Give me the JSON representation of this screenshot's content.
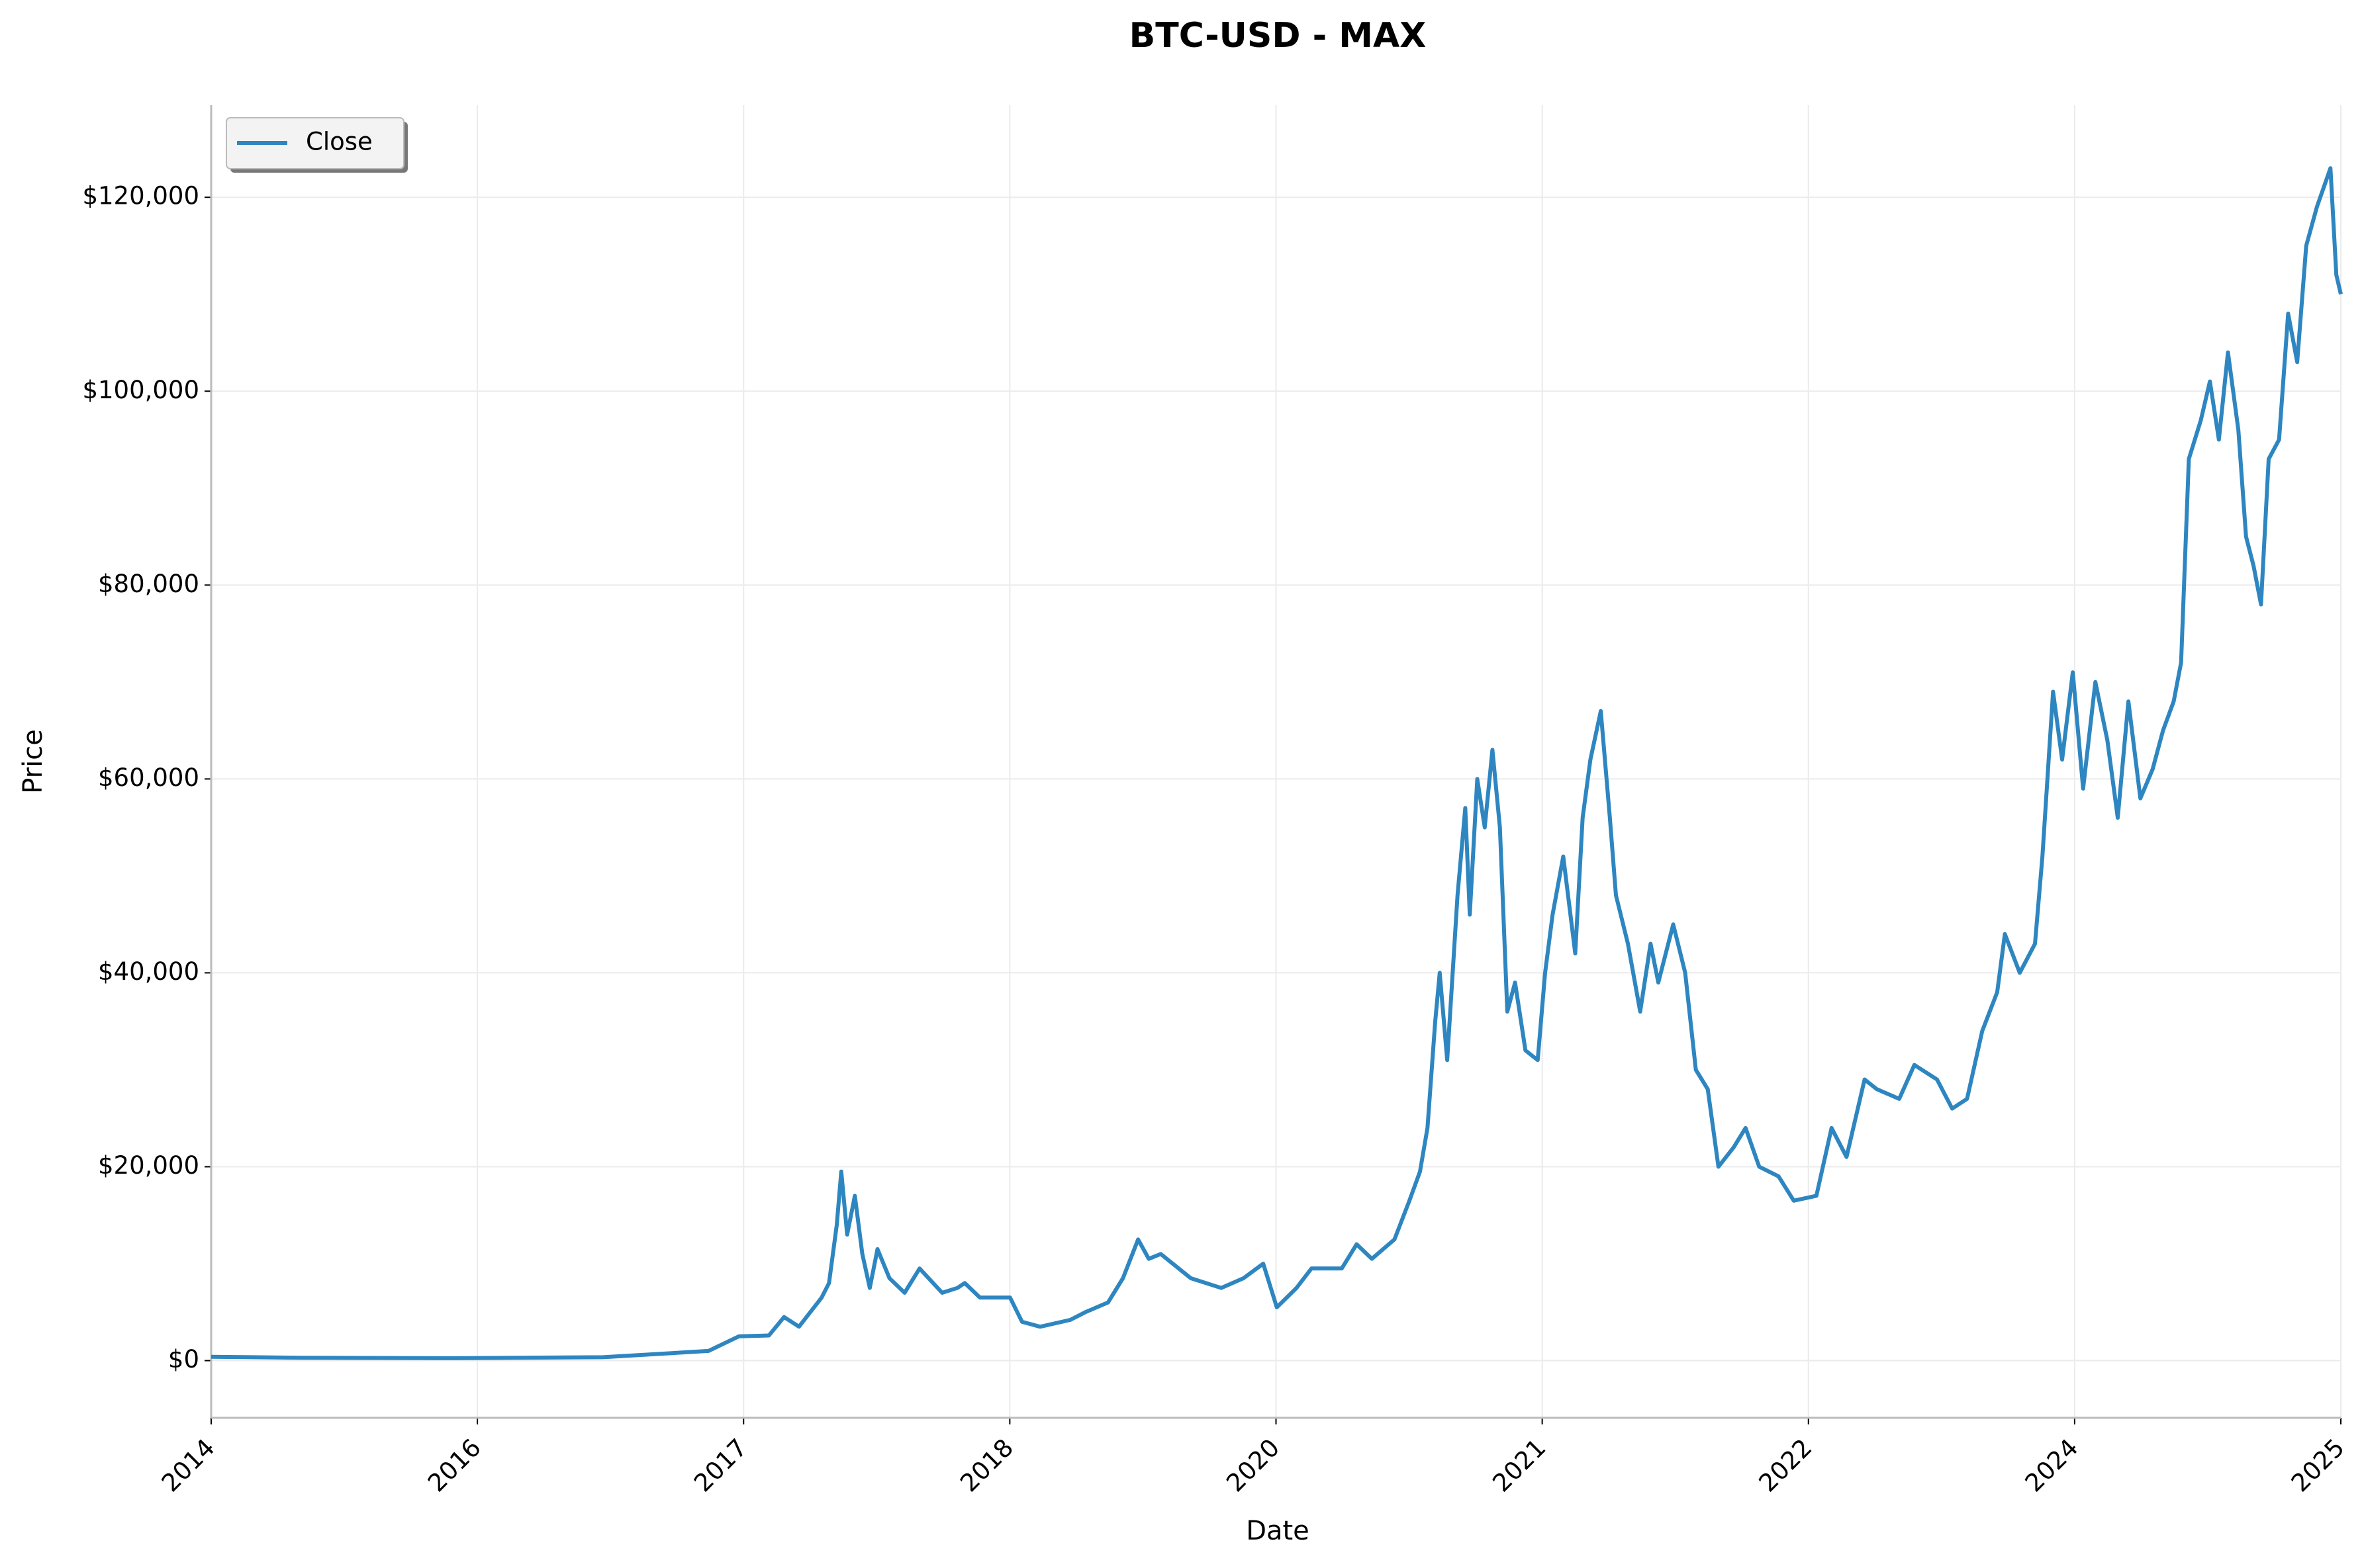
{
  "chart_data": {
    "type": "line",
    "title": "BTC-USD - MAX",
    "x_label": "Date",
    "y_label": "Price",
    "grid": true,
    "legend": "upper left",
    "xlim": [
      0,
      8
    ],
    "xticks": [
      {
        "value": 0,
        "label": "2014"
      },
      {
        "value": 1,
        "label": "2016"
      },
      {
        "value": 2,
        "label": "2017"
      },
      {
        "value": 3,
        "label": "2018"
      },
      {
        "value": 4,
        "label": "2020"
      },
      {
        "value": 5,
        "label": "2021"
      },
      {
        "value": 6,
        "label": "2022"
      },
      {
        "value": 7,
        "label": "2024"
      },
      {
        "value": 8,
        "label": "2025"
      }
    ],
    "ylim": [
      -5900,
      129500
    ],
    "yticks": [
      {
        "value": 0,
        "label": "$0"
      },
      {
        "value": 20000,
        "label": "$20,000"
      },
      {
        "value": 40000,
        "label": "$40,000"
      },
      {
        "value": 60000,
        "label": "$60,000"
      },
      {
        "value": 80000,
        "label": "$80,000"
      },
      {
        "value": 100000,
        "label": "$100,000"
      },
      {
        "value": 120000,
        "label": "$120,000"
      }
    ],
    "x": [
      0,
      0.34,
      0.906,
      1.472,
      1.868,
      1.982,
      2.095,
      2.152,
      2.208,
      2.293,
      2.321,
      2.35,
      2.367,
      2.389,
      2.418,
      2.446,
      2.474,
      2.503,
      2.548,
      2.605,
      2.661,
      2.746,
      2.803,
      2.831,
      2.888,
      3.001,
      3.046,
      3.114,
      3.227,
      3.284,
      3.369,
      3.425,
      3.482,
      3.522,
      3.567,
      3.68,
      3.794,
      3.878,
      3.952,
      4.003,
      4.077,
      4.133,
      4.247,
      4.303,
      4.36,
      4.445,
      4.501,
      4.541,
      4.569,
      4.598,
      4.615,
      4.643,
      4.682,
      4.711,
      4.728,
      4.756,
      4.784,
      4.813,
      4.841,
      4.869,
      4.898,
      4.937,
      4.983,
      5.011,
      5.039,
      5.079,
      5.124,
      5.152,
      5.181,
      5.22,
      5.254,
      5.277,
      5.322,
      5.368,
      5.407,
      5.436,
      5.492,
      5.537,
      5.577,
      5.622,
      5.662,
      5.719,
      5.764,
      5.815,
      5.888,
      5.945,
      6.03,
      6.087,
      6.143,
      6.211,
      6.257,
      6.341,
      6.398,
      6.483,
      6.54,
      6.596,
      6.653,
      6.709,
      6.738,
      6.794,
      6.851,
      6.879,
      6.919,
      6.953,
      6.993,
      7.032,
      7.078,
      7.123,
      7.162,
      7.202,
      7.247,
      7.293,
      7.332,
      7.372,
      7.4,
      7.429,
      7.474,
      7.508,
      7.542,
      7.576,
      7.615,
      7.644,
      7.672,
      7.7,
      7.729,
      7.768,
      7.802,
      7.836,
      7.87,
      7.91,
      7.961,
      7.983,
      8.0
    ],
    "series": [
      {
        "name": "Close",
        "color": "#2e86c1",
        "values": [
          400,
          300,
          250,
          350,
          1000,
          2500,
          2600,
          4500,
          3500,
          6500,
          8000,
          14000,
          19500,
          13000,
          17000,
          11000,
          7500,
          11500,
          8500,
          7000,
          9500,
          7000,
          7500,
          8000,
          6500,
          6500,
          4000,
          3500,
          4200,
          5000,
          6000,
          8500,
          12500,
          10500,
          11000,
          8500,
          7500,
          8500,
          10000,
          5500,
          7500,
          9500,
          9500,
          12000,
          10500,
          12500,
          16500,
          19500,
          24000,
          35000,
          40000,
          31000,
          48000,
          57000,
          46000,
          60000,
          55000,
          63000,
          55000,
          36000,
          39000,
          32000,
          31000,
          40000,
          46000,
          52000,
          42000,
          56000,
          62000,
          67000,
          56000,
          48000,
          43000,
          36000,
          43000,
          39000,
          45000,
          40000,
          30000,
          28000,
          20000,
          22000,
          24000,
          20000,
          19000,
          16500,
          17000,
          24000,
          21000,
          29000,
          28000,
          27000,
          30500,
          29000,
          26000,
          27000,
          34000,
          38000,
          44000,
          40000,
          43000,
          52000,
          69000,
          62000,
          71000,
          59000,
          70000,
          64000,
          56000,
          68000,
          58000,
          61000,
          65000,
          68000,
          72000,
          93000,
          97000,
          101000,
          95000,
          104000,
          96000,
          85000,
          82000,
          78000,
          93000,
          95000,
          108000,
          103000,
          115000,
          119000,
          123000,
          112000,
          110000
        ]
      }
    ]
  }
}
